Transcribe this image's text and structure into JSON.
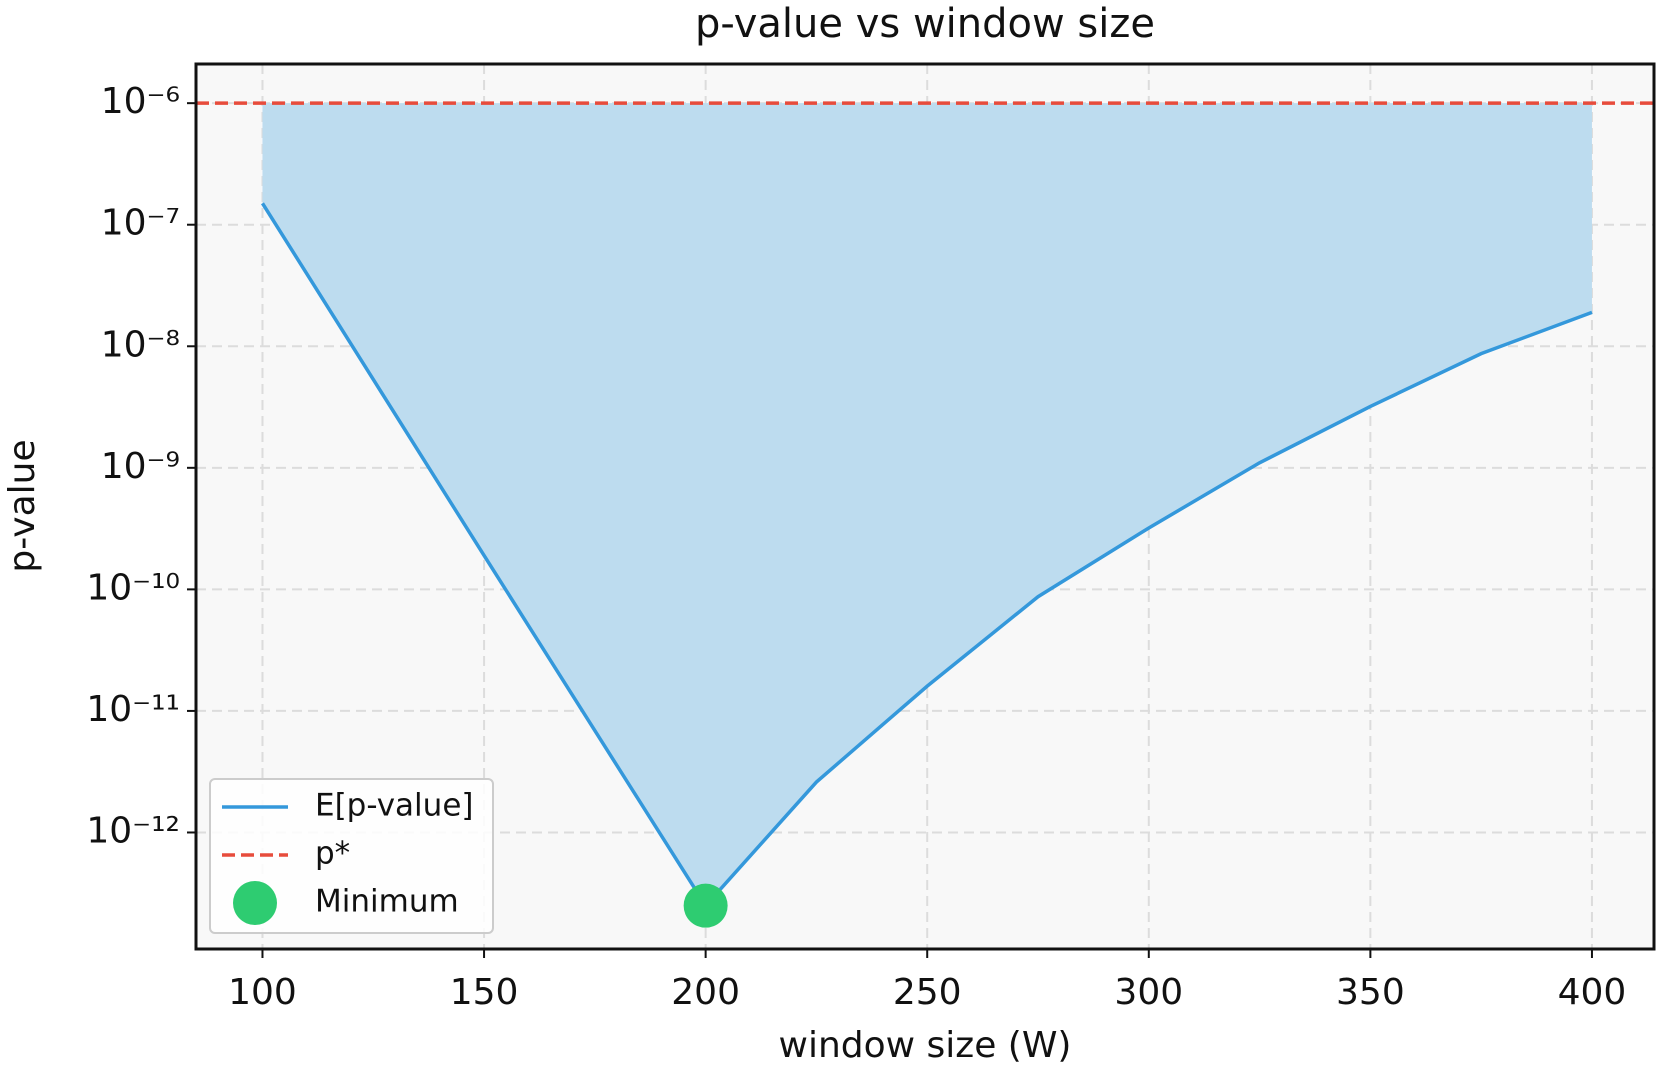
{
  "chart_data": {
    "type": "line",
    "title": "p-value vs window size",
    "x_label": "window size (W)",
    "y_label": "p-value",
    "x": [
      100,
      150,
      200,
      225,
      250,
      275,
      300,
      325,
      350,
      375,
      400
    ],
    "series": [
      {
        "name": "E[p-value]",
        "color": "#3498db",
        "fill_color": "#bddcef",
        "values": [
          1.5e-07,
          1.9e-10,
          2.5e-13,
          2.6e-12,
          1.6e-11,
          8.7e-11,
          3.2e-10,
          1.1e-09,
          3.2e-09,
          8.7e-09,
          1.9e-08
        ]
      }
    ],
    "threshold": {
      "name": "p*",
      "value": 1e-06,
      "color": "#e74c3c"
    },
    "minimum": {
      "name": "Minimum",
      "x": 200,
      "y": 2.5e-13,
      "color": "#2ecc71"
    },
    "xlim": [
      85,
      414
    ],
    "ylim": [
      1.1e-13,
      2.1e-06
    ],
    "y_log": true,
    "xticks": [
      100,
      150,
      200,
      250,
      300,
      350,
      400
    ],
    "yticks": [
      {
        "value": 1e-06,
        "label": "10⁻⁶"
      },
      {
        "value": 1e-07,
        "label": "10⁻⁷"
      },
      {
        "value": 1e-08,
        "label": "10⁻⁸"
      },
      {
        "value": 1e-09,
        "label": "10⁻⁹"
      },
      {
        "value": 1e-10,
        "label": "10⁻¹⁰"
      },
      {
        "value": 1e-11,
        "label": "10⁻¹¹"
      },
      {
        "value": 1e-12,
        "label": "10⁻¹²"
      }
    ],
    "grid": true,
    "legend": "lower left"
  }
}
